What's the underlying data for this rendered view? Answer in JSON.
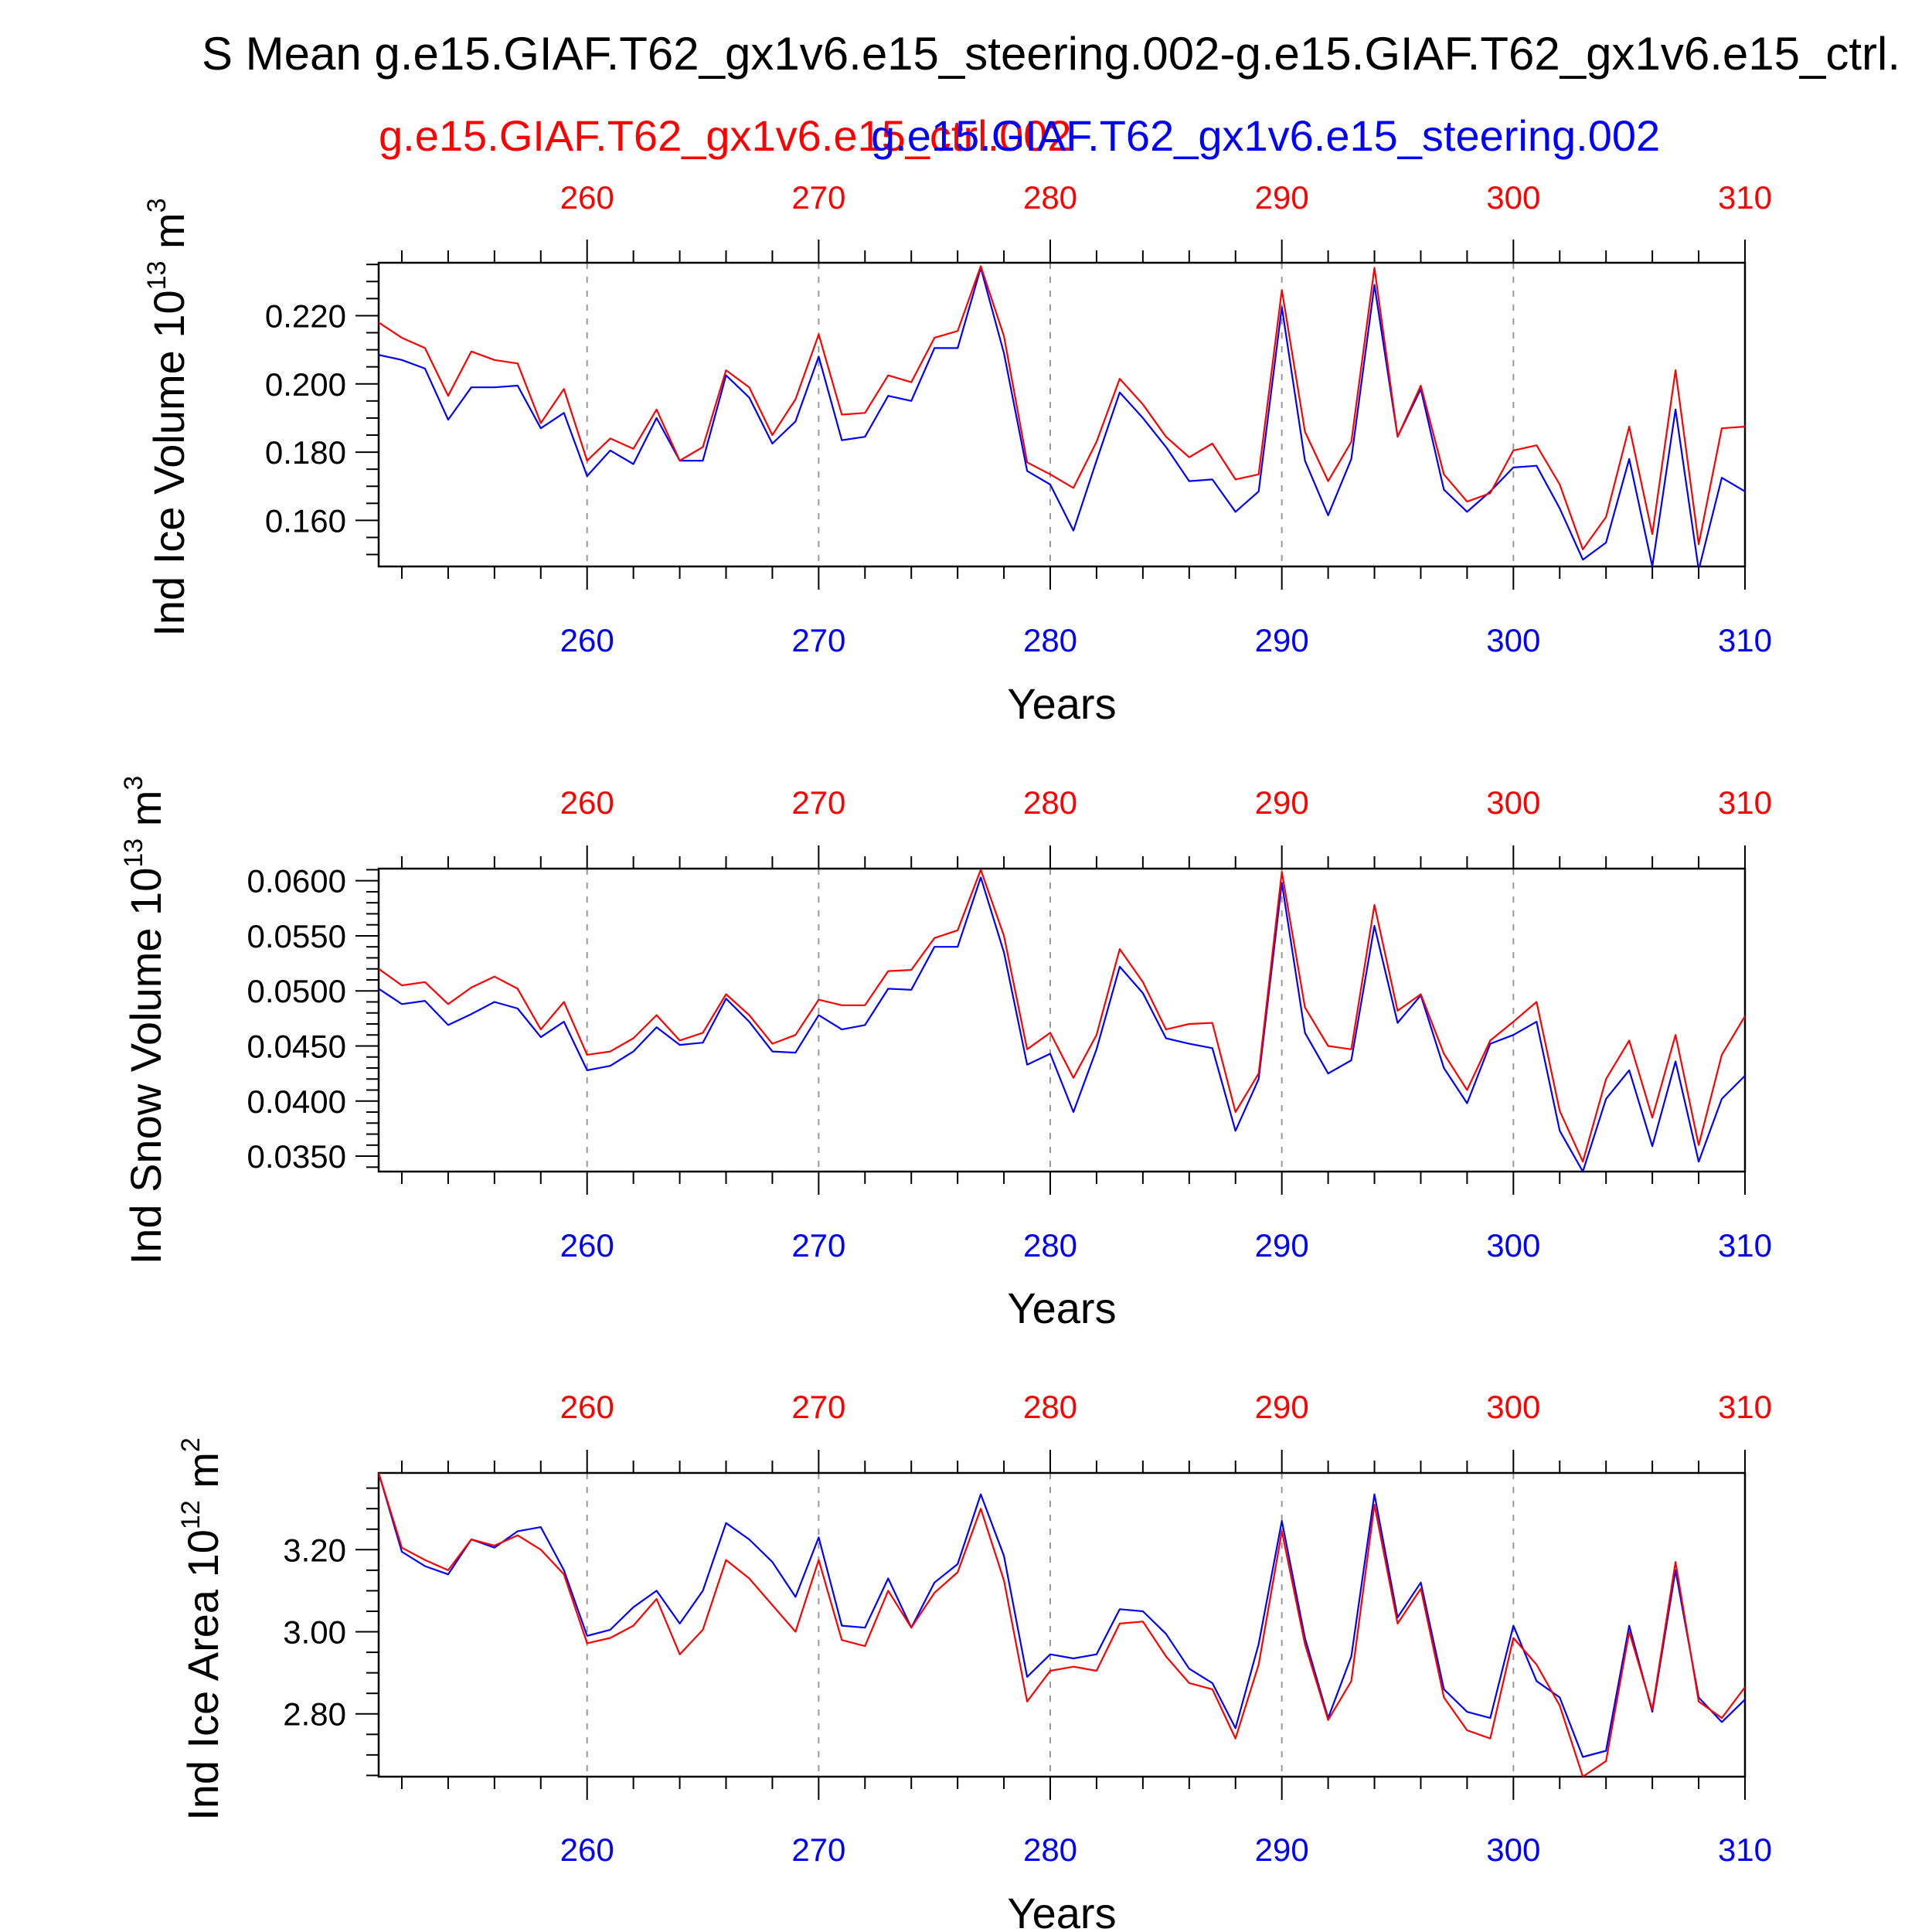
{
  "title": "S Mean g.e15.GIAF.T62_gx1v6.e15_steering.002-g.e15.GIAF.T62_gx1v6.e15_ctrl.",
  "legend": {
    "ctrl_label": "g.e15.GIAF.T62_gx1v6.e15_ctrl.002",
    "steering_label": "g.e15.GIAF.T62_gx1v6.e15_steering.002"
  },
  "colors": {
    "ctrl": "#ff0000",
    "steering": "#0000ff",
    "axis": "#000000",
    "grid": "#999999"
  },
  "chart_data": [
    {
      "type": "line",
      "ylabel": "Ind Ice Volume 10",
      "ylabel_exp": "13",
      "ylabel_unit": " m",
      "ylabel_unit_exp": "3",
      "xlabel": "Years",
      "xlim": [
        251,
        310
      ],
      "ylim": [
        0.1465,
        0.2355
      ],
      "yticks": [
        0.16,
        0.18,
        0.2,
        0.22
      ],
      "ytick_labels": [
        "0.160",
        "0.180",
        "0.200",
        "0.220"
      ],
      "yminor_step": 0.005,
      "x_top_labels": [
        "260",
        "270",
        "280",
        "290",
        "300",
        "310"
      ],
      "x_bottom_labels": [
        "260",
        "270",
        "280",
        "290",
        "300",
        "310"
      ],
      "x_start": 251,
      "series": [
        {
          "name": "g.e15.GIAF.T62_gx1v6.e15_ctrl.002",
          "color": "#ff0000",
          "values": [
            0.218,
            0.2135,
            0.2105,
            0.1965,
            0.2095,
            0.207,
            0.206,
            0.1885,
            0.1985,
            0.1775,
            0.184,
            0.181,
            0.1925,
            0.1775,
            0.1815,
            0.204,
            0.199,
            0.185,
            0.1955,
            0.2145,
            0.191,
            0.1915,
            0.2025,
            0.2005,
            0.2135,
            0.2155,
            0.2345,
            0.214,
            0.177,
            0.1735,
            0.1695,
            0.183,
            0.2015,
            0.194,
            0.1845,
            0.1785,
            0.1825,
            0.172,
            0.1735,
            0.2275,
            0.186,
            0.1715,
            0.183,
            0.234,
            0.1845,
            0.1995,
            0.1735,
            0.1655,
            0.168,
            0.1805,
            0.182,
            0.1705,
            0.1515,
            0.161,
            0.1875,
            0.156,
            0.204,
            0.153,
            0.187,
            0.1875
          ]
        },
        {
          "name": "g.e15.GIAF.T62_gx1v6.e15_steering.002",
          "color": "#0000ff",
          "values": [
            0.2085,
            0.207,
            0.2045,
            0.1895,
            0.199,
            0.199,
            0.1995,
            0.187,
            0.1915,
            0.173,
            0.1805,
            0.1765,
            0.19,
            0.1775,
            0.1775,
            0.2025,
            0.196,
            0.1825,
            0.189,
            0.208,
            0.1835,
            0.1845,
            0.1965,
            0.195,
            0.2105,
            0.2105,
            0.234,
            0.209,
            0.1745,
            0.1705,
            0.157,
            0.1775,
            0.1975,
            0.19,
            0.1815,
            0.1715,
            0.172,
            0.1625,
            0.1685,
            0.2225,
            0.1775,
            0.1615,
            0.178,
            0.229,
            0.1845,
            0.1985,
            0.169,
            0.1625,
            0.1685,
            0.1755,
            0.176,
            0.1635,
            0.1485,
            0.1535,
            0.178,
            0.1465,
            0.1925,
            0.1455,
            0.1725,
            0.1685
          ]
        }
      ]
    },
    {
      "type": "line",
      "ylabel": "Ind Snow Volume 10",
      "ylabel_exp": "13",
      "ylabel_unit": " m",
      "ylabel_unit_exp": "3",
      "xlabel": "Years",
      "xlim": [
        251,
        310
      ],
      "ylim": [
        0.0336,
        0.0611
      ],
      "yticks": [
        0.035,
        0.04,
        0.045,
        0.05,
        0.055,
        0.06
      ],
      "ytick_labels": [
        "0.0350",
        "0.0400",
        "0.0450",
        "0.0500",
        "0.0550",
        "0.0600"
      ],
      "yminor_step": 0.001,
      "x_top_labels": [
        "260",
        "270",
        "280",
        "290",
        "300",
        "310"
      ],
      "x_bottom_labels": [
        "260",
        "270",
        "280",
        "290",
        "300",
        "310"
      ],
      "x_start": 251,
      "series": [
        {
          "name": "g.e15.GIAF.T62_gx1v6.e15_ctrl.002",
          "color": "#ff0000",
          "values": [
            0.052,
            0.0505,
            0.0508,
            0.0488,
            0.0503,
            0.0513,
            0.0502,
            0.0465,
            0.049,
            0.0442,
            0.0445,
            0.0457,
            0.0478,
            0.0455,
            0.0462,
            0.0497,
            0.0478,
            0.0452,
            0.046,
            0.0492,
            0.0487,
            0.0487,
            0.0518,
            0.0519,
            0.0548,
            0.0555,
            0.061,
            0.055,
            0.0447,
            0.0462,
            0.0421,
            0.046,
            0.0538,
            0.0508,
            0.0465,
            0.047,
            0.0471,
            0.039,
            0.0425,
            0.0608,
            0.0485,
            0.045,
            0.0447,
            0.0578,
            0.0482,
            0.0497,
            0.0443,
            0.041,
            0.0455,
            0.0472,
            0.049,
            0.0391,
            0.0345,
            0.042,
            0.0455,
            0.0385,
            0.046,
            0.036,
            0.0442,
            0.0477
          ]
        },
        {
          "name": "g.e15.GIAF.T62_gx1v6.e15_steering.002",
          "color": "#0000ff",
          "values": [
            0.0502,
            0.0488,
            0.0491,
            0.0469,
            0.0479,
            0.049,
            0.0484,
            0.0458,
            0.0472,
            0.0428,
            0.0432,
            0.0445,
            0.0467,
            0.0451,
            0.0453,
            0.0493,
            0.0472,
            0.0445,
            0.0444,
            0.0478,
            0.0465,
            0.0469,
            0.0502,
            0.0501,
            0.054,
            0.054,
            0.0603,
            0.0535,
            0.0433,
            0.0443,
            0.039,
            0.0447,
            0.0522,
            0.0498,
            0.0457,
            0.0452,
            0.0448,
            0.0373,
            0.042,
            0.0598,
            0.0462,
            0.0425,
            0.0437,
            0.0559,
            0.0471,
            0.0496,
            0.043,
            0.0398,
            0.0452,
            0.046,
            0.0472,
            0.0373,
            0.0336,
            0.0402,
            0.0428,
            0.0359,
            0.0436,
            0.0345,
            0.0402,
            0.0423
          ]
        }
      ]
    },
    {
      "type": "line",
      "ylabel": "Ind Ice Area 10",
      "ylabel_exp": "12",
      "ylabel_unit": " m",
      "ylabel_unit_exp": "2",
      "xlabel": "Years",
      "xlim": [
        251,
        310
      ],
      "ylim": [
        2.647,
        3.387
      ],
      "yticks": [
        2.8,
        3.0,
        3.2
      ],
      "ytick_labels": [
        "2.80",
        "3.00",
        "3.20"
      ],
      "yminor_step": 0.05,
      "x_top_labels": [
        "260",
        "270",
        "280",
        "290",
        "300",
        "310"
      ],
      "x_bottom_labels": [
        "260",
        "270",
        "280",
        "290",
        "300",
        "310"
      ],
      "x_start": 251,
      "series": [
        {
          "name": "g.e15.GIAF.T62_gx1v6.e15_ctrl.002",
          "color": "#ff0000",
          "values": [
            3.387,
            3.205,
            3.175,
            3.15,
            3.225,
            3.21,
            3.235,
            3.2,
            3.14,
            2.972,
            2.985,
            3.015,
            3.08,
            2.945,
            3.005,
            3.175,
            3.13,
            3.065,
            3.0,
            3.175,
            2.98,
            2.965,
            3.1,
            3.01,
            3.095,
            3.145,
            3.3,
            3.125,
            2.83,
            2.905,
            2.915,
            2.905,
            3.02,
            3.025,
            2.94,
            2.875,
            2.86,
            2.74,
            2.92,
            3.245,
            2.97,
            2.785,
            2.88,
            3.31,
            3.02,
            3.105,
            2.84,
            2.76,
            2.74,
            2.985,
            2.92,
            2.82,
            2.647,
            2.685,
            3.0,
            2.81,
            3.17,
            2.83,
            2.79,
            2.865
          ]
        },
        {
          "name": "g.e15.GIAF.T62_gx1v6.e15_steering.002",
          "color": "#0000ff",
          "values": [
            3.387,
            3.195,
            3.16,
            3.14,
            3.225,
            3.205,
            3.245,
            3.255,
            3.15,
            2.99,
            3.005,
            3.06,
            3.1,
            3.02,
            3.1,
            3.265,
            3.225,
            3.17,
            3.085,
            3.23,
            3.015,
            3.01,
            3.13,
            3.01,
            3.12,
            3.165,
            3.335,
            3.185,
            2.89,
            2.945,
            2.935,
            2.945,
            3.055,
            3.05,
            2.995,
            2.91,
            2.875,
            2.765,
            2.97,
            3.27,
            2.985,
            2.79,
            2.94,
            3.335,
            3.035,
            3.12,
            2.86,
            2.805,
            2.79,
            3.015,
            2.88,
            2.84,
            2.695,
            2.71,
            3.015,
            2.805,
            3.15,
            2.84,
            2.78,
            2.835
          ]
        }
      ]
    }
  ]
}
